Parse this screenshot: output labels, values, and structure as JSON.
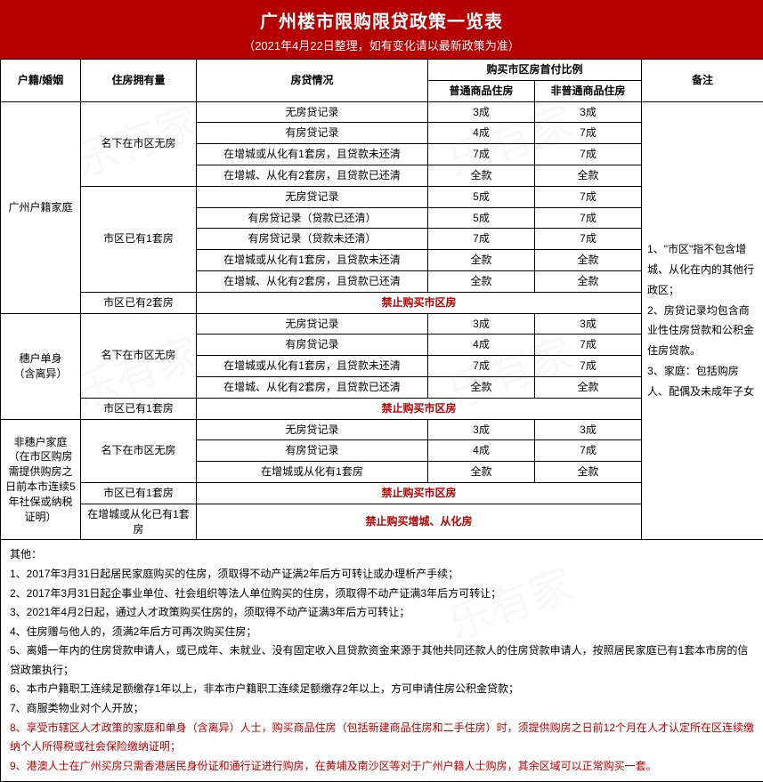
{
  "header": {
    "title": "广州楼市限购限贷政策一览表",
    "subtitle": "（2021年4月22日整理，如有变化请以最新政策为准）",
    "bg_color": "#b60000",
    "text_color": "#ffffff"
  },
  "watermark": "乐有家",
  "columns": {
    "c1": "户籍/婚姻",
    "c2": "住房拥有量",
    "c3": "房贷情况",
    "c4_group": "购买市区房首付比例",
    "c4": "普通商品住房",
    "c5": "非普通商品住房",
    "c6": "备注"
  },
  "groups": [
    {
      "cat": "广州户籍家庭",
      "blocks": [
        {
          "own": "名下在市区无房",
          "rows": [
            {
              "loan": "无房贷记录",
              "p1": "3成",
              "p2": "3成"
            },
            {
              "loan": "有房贷记录",
              "p1": "4成",
              "p2": "7成"
            },
            {
              "loan": "在增城或从化有1套房，且贷款未还清",
              "p1": "7成",
              "p2": "7成"
            },
            {
              "loan": "在增城、从化有2套房，且贷款已还清",
              "p1": "全款",
              "p2": "全款"
            }
          ]
        },
        {
          "own": "市区已有1套房",
          "rows": [
            {
              "loan": "无房贷记录",
              "p1": "5成",
              "p2": "7成"
            },
            {
              "loan": "有房贷记录（贷款已还清）",
              "p1": "5成",
              "p2": "7成"
            },
            {
              "loan": "有房贷记录（贷款未还清）",
              "p1": "7成",
              "p2": "7成"
            },
            {
              "loan": "在增城或从化有1套房，且贷款未还清",
              "p1": "全款",
              "p2": "全款"
            },
            {
              "loan": "在增城、从化有2套房，且贷款已还清",
              "p1": "全款",
              "p2": "全款"
            }
          ]
        },
        {
          "own": "市区已有2套房",
          "ban": "禁止购买市区房"
        }
      ]
    },
    {
      "cat": "穗户单身\n（含离异）",
      "blocks": [
        {
          "own": "名下在市区无房",
          "rows": [
            {
              "loan": "无房贷记录",
              "p1": "3成",
              "p2": "3成"
            },
            {
              "loan": "有房贷记录",
              "p1": "4成",
              "p2": "7成"
            },
            {
              "loan": "在增城或从化有1套房，且贷款未还清",
              "p1": "7成",
              "p2": "7成"
            },
            {
              "loan": "在增城、从化有2套房，且贷款已还清",
              "p1": "全款",
              "p2": "全款"
            }
          ]
        },
        {
          "own": "市区已有1套房",
          "ban": "禁止购买市区房"
        }
      ]
    },
    {
      "cat": "非穗户家庭\n（在市区购房需提供购房之日前本市连续5年社保或纳税证明）",
      "blocks": [
        {
          "own": "名下在市区无房",
          "rows": [
            {
              "loan": "无房贷记录",
              "p1": "3成",
              "p2": "3成"
            },
            {
              "loan": "有房贷记录",
              "p1": "4成",
              "p2": "7成"
            },
            {
              "loan": "在增城或从化有1套房",
              "p1": "全款",
              "p2": "全款"
            }
          ]
        },
        {
          "own": "市区已有1套房",
          "ban": "禁止购买市区房"
        },
        {
          "own": "在增城或从化已有1套房",
          "ban": "禁止购买增城、从化房"
        }
      ]
    }
  ],
  "remark": "1、\"市区\"指不包含增城、从化在内的其他行政区；\n2、房贷记录均包含商业性住房贷款和公积金住房贷款。\n3、家庭：包括购房人、配偶及未成年子女",
  "notes": {
    "heading": "其他：",
    "items": [
      "1、2017年3月31日起居民家庭购买的住房，须取得不动产证满2年后方可转让或办理析产手续；",
      "2、2017年3月31日起企事业单位、社会组织等法人单位购买的住房，须取得不动产证满3年后方可转让；",
      "3、2021年4月2日起，通过人才政策购买住房的，须取得不动产证满3年后方可转让；",
      "4、住房赠与他人的，须满2年后方可再次购买住房；",
      "5、离婚一年内的住房贷款申请人，或已成年、未就业、没有固定收入且贷款资金来源于其他共同还款人的住房贷款申请人，按照居民家庭已有1套本市房的信贷政策执行；",
      "6、本市户籍职工连续足额缴存1年以上，非本市户籍职工连续足额缴存2年以上，方可申请住房公积金贷款；",
      "7、商服类物业对个人开放；"
    ],
    "red_items": [
      "8、享受市辖区人才政策的家庭和单身（含离异）人士，购买商品住房（包括新建商品住房和二手住房）时，须提供购房之日前12个月在人才认定所在区连续缴纳个人所得税或社会保险缴纳证明；",
      "9、港澳人士在广州买房只需香港居民身份证和通行证进行购房，在黄埔及南沙区等对于广州户籍人士购房，其余区域可以正常购买一套。"
    ]
  },
  "style": {
    "border_color": "#000000",
    "ban_color": "#b60000",
    "font_size_body": 12,
    "font_size_title": 20,
    "font_size_subtitle": 13
  }
}
